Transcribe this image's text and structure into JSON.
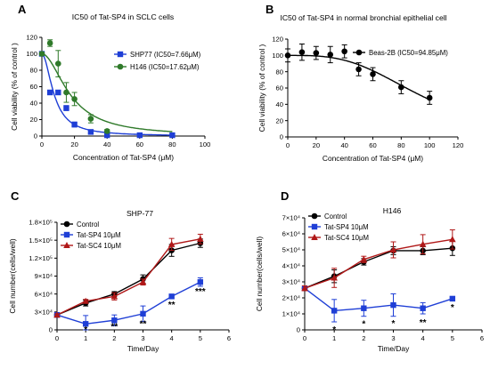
{
  "chart_data": [
    {
      "panel": "A",
      "type": "scatter",
      "title": "IC50 of Tat-SP4 in SCLC cells",
      "xlabel": "Concentration of Tat-SP4 (μM)",
      "ylabel": "Cell viability (% of control )",
      "xlim": [
        0,
        100
      ],
      "ylim": [
        0,
        120
      ],
      "xticks": [
        "0",
        "20",
        "40",
        "60",
        "80",
        "100"
      ],
      "yticks": [
        "0",
        "20",
        "40",
        "60",
        "80",
        "100",
        "120"
      ],
      "legend_position": "right",
      "series": [
        {
          "name": "SHP77 (IC50=7.66μM)",
          "color": "#1f3fd6",
          "marker": "square",
          "x": [
            0,
            5,
            10,
            15,
            20,
            30,
            40,
            60,
            80
          ],
          "y": [
            100,
            53,
            53,
            34,
            14,
            5,
            1,
            1,
            1
          ],
          "err": [
            2,
            2,
            2,
            3,
            3,
            2,
            1,
            1,
            1
          ],
          "fit_ic50": 7.66
        },
        {
          "name": "H146 (IC50=17.62μM)",
          "color": "#2f7a2a",
          "marker": "circle",
          "x": [
            0,
            5,
            10,
            15,
            20,
            30,
            40
          ],
          "y": [
            100,
            113,
            88,
            53,
            45,
            21,
            6
          ],
          "err": [
            2,
            4,
            16,
            12,
            8,
            5,
            2
          ],
          "fit_ic50": 17.62
        }
      ]
    },
    {
      "panel": "B",
      "type": "scatter",
      "title": "IC50 of Tat-SP4 in normal bronchial epithelial cell",
      "xlabel": "Concentration of Tat-SP4 (μM)",
      "ylabel": "Cell viability (% of control )",
      "xlim": [
        0,
        120
      ],
      "ylim": [
        0,
        120
      ],
      "xticks": [
        "0",
        "20",
        "40",
        "60",
        "80",
        "100",
        "120"
      ],
      "yticks": [
        "0",
        "20",
        "40",
        "60",
        "80",
        "100",
        "120"
      ],
      "legend_position": "top-right",
      "series": [
        {
          "name": "Beas-2B (IC50=94.85μM)",
          "color": "#000000",
          "marker": "circle",
          "x": [
            0,
            10,
            20,
            30,
            40,
            50,
            60,
            80,
            100
          ],
          "y": [
            100,
            104,
            103,
            101,
            105,
            83,
            77,
            61,
            48
          ],
          "err": [
            8,
            10,
            8,
            10,
            8,
            8,
            8,
            8,
            8
          ],
          "fit_ic50": 94.85
        }
      ]
    },
    {
      "panel": "C",
      "type": "line",
      "title": "SHP-77",
      "xlabel": "Time/Day",
      "ylabel": "Cell number(cells/well)",
      "xlim": [
        0,
        6
      ],
      "ylim": [
        0,
        180000
      ],
      "xticks": [
        "0",
        "1",
        "2",
        "3",
        "4",
        "5",
        "6"
      ],
      "yticks": [
        "0",
        "3×10⁴",
        "6×10⁴",
        "9×10⁴",
        "1.2×10⁵",
        "1.5×10⁵",
        "1.8×10⁵"
      ],
      "legend_position": "top-left",
      "series": [
        {
          "name": "Control",
          "color": "#000000",
          "marker": "circle",
          "x": [
            0,
            1,
            2,
            3,
            4,
            5
          ],
          "y": [
            25000,
            45000,
            60000,
            85000,
            133000,
            145000
          ],
          "err": [
            2000,
            5000,
            4000,
            7000,
            10000,
            7000
          ]
        },
        {
          "name": "Tat-SP4 10μM",
          "color": "#1f3fd6",
          "marker": "square",
          "x": [
            0,
            1,
            2,
            3,
            4,
            5
          ],
          "y": [
            25000,
            10000,
            16000,
            27000,
            56000,
            80000
          ],
          "err": [
            2000,
            14000,
            9000,
            13000,
            3000,
            7000
          ]
        },
        {
          "name": "Tat-SC4 10μM",
          "color": "#b01818",
          "marker": "triangle",
          "x": [
            0,
            1,
            2,
            3,
            4,
            5
          ],
          "y": [
            25000,
            48000,
            56000,
            80000,
            143000,
            152000
          ],
          "err": [
            2000,
            3000,
            6000,
            5000,
            10000,
            8000
          ]
        }
      ],
      "annotations": [
        {
          "x": 1,
          "y": 0,
          "text": "*"
        },
        {
          "x": 2,
          "y": 5000,
          "text": "**"
        },
        {
          "x": 3,
          "y": 10000,
          "text": "**"
        },
        {
          "x": 4,
          "y": 42000,
          "text": "**"
        },
        {
          "x": 5,
          "y": 64000,
          "text": "***"
        }
      ]
    },
    {
      "panel": "D",
      "type": "line",
      "title": "H146",
      "xlabel": "Time/Day",
      "ylabel": "Cell number(cells/well)",
      "xlim": [
        0,
        6
      ],
      "ylim": [
        0,
        70000
      ],
      "xticks": [
        "0",
        "1",
        "2",
        "3",
        "4",
        "5",
        "6"
      ],
      "yticks": [
        "0",
        "1×10⁴",
        "2×10⁴",
        "3×10⁴",
        "4×10⁴",
        "5×10⁴",
        "6×10⁴",
        "7×10⁴"
      ],
      "legend_position": "top-left",
      "series": [
        {
          "name": "Control",
          "color": "#000000",
          "marker": "circle",
          "x": [
            0,
            1,
            2,
            3,
            4,
            5
          ],
          "y": [
            26000,
            33500,
            42500,
            49500,
            49500,
            51000
          ],
          "err": [
            1500,
            4000,
            2000,
            2500,
            2500,
            4500
          ]
        },
        {
          "name": "Tat-SP4 10μM",
          "color": "#1f3fd6",
          "marker": "square",
          "x": [
            0,
            1,
            2,
            3,
            4,
            5
          ],
          "y": [
            26000,
            12000,
            13500,
            15500,
            13500,
            19500
          ],
          "err": [
            1500,
            7000,
            5000,
            7000,
            3500,
            1000
          ]
        },
        {
          "name": "Tat-SC4 10μM",
          "color": "#b01818",
          "marker": "triangle",
          "x": [
            0,
            1,
            2,
            3,
            4,
            5
          ],
          "y": [
            26000,
            32500,
            44000,
            50000,
            53500,
            56500
          ],
          "err": [
            1500,
            6000,
            2000,
            5000,
            6000,
            6000
          ]
        }
      ],
      "annotations": [
        {
          "x": 1,
          "y": 0,
          "text": "*"
        },
        {
          "x": 2,
          "y": 3500,
          "text": "*"
        },
        {
          "x": 3,
          "y": 4000,
          "text": "*"
        },
        {
          "x": 4,
          "y": 4500,
          "text": "**"
        },
        {
          "x": 5,
          "y": 14000,
          "text": "*"
        }
      ]
    }
  ]
}
